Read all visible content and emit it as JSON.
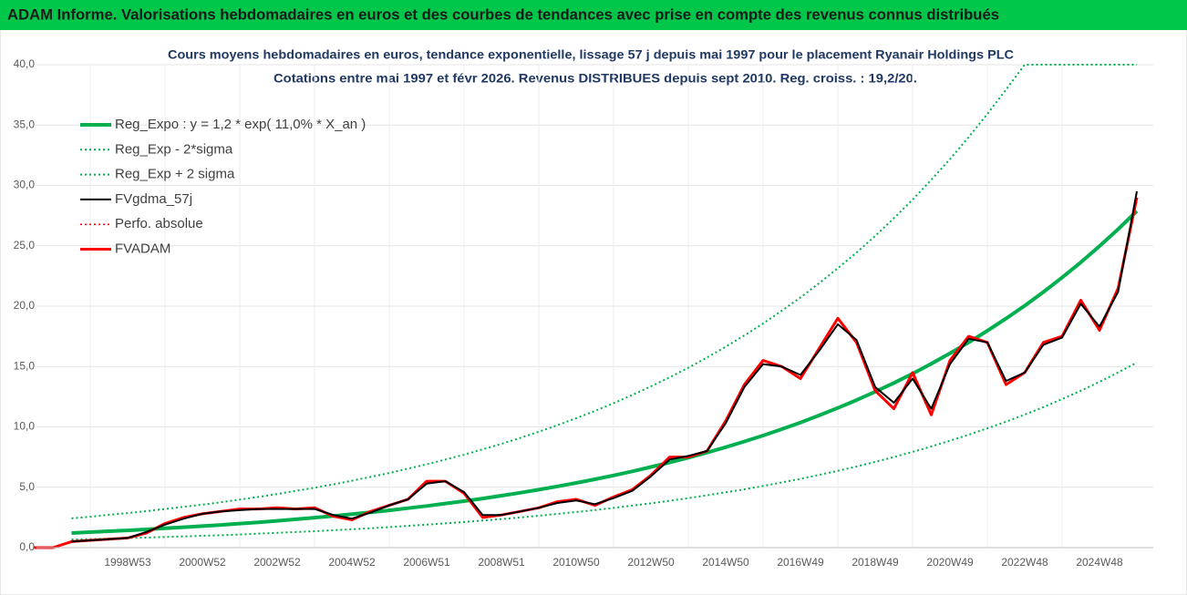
{
  "header": {
    "title": "ADAM Informe. Valorisations hebdomadaires en euros et des courbes de tendances avec prise en compte des revenus connus distribués"
  },
  "chart_data": {
    "type": "line",
    "title": "Cours moyens hebdomadaires en euros, tendance exponentielle, lissage 57 j depuis mai 1997 pour le placement Ryanair Holdings PLC",
    "subtitle": "Cotations entre mai 1997 et févr 2026. Revenus DISTRIBUES depuis sept 2010. Reg. croiss. : 19,2/20.",
    "categories": [
      null,
      null,
      null,
      null,
      null,
      "1998W53",
      null,
      null,
      null,
      "2000W52",
      null,
      null,
      null,
      "2002W52",
      null,
      null,
      null,
      "2004W52",
      null,
      null,
      null,
      "2006W51",
      null,
      null,
      null,
      "2008W51",
      null,
      null,
      null,
      "2010W50",
      null,
      null,
      null,
      "2012W50",
      null,
      null,
      null,
      "2014W50",
      null,
      null,
      null,
      "2016W49",
      null,
      null,
      null,
      "2018W49",
      null,
      null,
      null,
      "2020W49",
      null,
      null,
      null,
      "2022W48",
      null,
      null,
      null,
      "2024W48",
      null,
      null
    ],
    "ylim": [
      0,
      40
    ],
    "yticks": [
      {
        "value": 0,
        "label": "0,0"
      },
      {
        "value": 5,
        "label": "5,0"
      },
      {
        "value": 10,
        "label": "10,0"
      },
      {
        "value": 15,
        "label": "15,0"
      },
      {
        "value": 20,
        "label": "20,0"
      },
      {
        "value": 25,
        "label": "25,0"
      },
      {
        "value": 30,
        "label": "30,0"
      },
      {
        "value": 35,
        "label": "35,0"
      },
      {
        "value": 40,
        "label": "40,0"
      }
    ],
    "grid": true,
    "legend": "upper left",
    "series": [
      {
        "name": "Reg_Expo : y = 1,2 * exp( 11,0% *  X_an )",
        "color": "#00b050",
        "width": 4,
        "dash": "solid",
        "values": [
          null,
          null,
          1.21,
          1.28,
          1.36,
          1.43,
          1.51,
          1.6,
          1.69,
          1.78,
          1.88,
          1.99,
          2.1,
          2.22,
          2.35,
          2.48,
          2.62,
          2.77,
          2.93,
          3.09,
          3.27,
          3.45,
          3.65,
          3.85,
          4.07,
          4.3,
          4.54,
          4.8,
          5.07,
          5.36,
          5.66,
          5.98,
          6.32,
          6.68,
          7.05,
          7.45,
          7.87,
          8.32,
          8.79,
          9.28,
          9.81,
          10.36,
          10.95,
          11.57,
          12.22,
          12.91,
          13.64,
          14.41,
          15.23,
          16.09,
          17.0,
          17.96,
          18.97,
          20.04,
          21.17,
          22.37,
          23.63,
          24.97,
          26.38,
          27.87
        ]
      },
      {
        "name": "Reg_Exp - 2*sigma",
        "color": "#00b050",
        "width": 2,
        "dash": "dotted",
        "values": [
          null,
          null,
          0.67,
          0.7,
          0.75,
          0.79,
          0.83,
          0.88,
          0.93,
          0.98,
          1.03,
          1.09,
          1.16,
          1.22,
          1.29,
          1.36,
          1.44,
          1.52,
          1.61,
          1.7,
          1.8,
          1.9,
          2.01,
          2.12,
          2.24,
          2.37,
          2.5,
          2.64,
          2.79,
          2.95,
          3.11,
          3.29,
          3.48,
          3.67,
          3.88,
          4.1,
          4.33,
          4.58,
          4.83,
          5.1,
          5.4,
          5.7,
          6.02,
          6.36,
          6.72,
          7.1,
          7.5,
          7.93,
          8.38,
          8.85,
          9.35,
          9.88,
          10.43,
          11.02,
          11.64,
          12.3,
          13.0,
          13.73,
          14.51,
          15.33
        ]
      },
      {
        "name": "Reg_Exp + 2 sigma",
        "color": "#00b050",
        "width": 2,
        "dash": "dotted",
        "values": [
          null,
          null,
          2.42,
          2.56,
          2.72,
          2.86,
          3.02,
          3.2,
          3.38,
          3.56,
          3.76,
          3.98,
          4.2,
          4.44,
          4.7,
          4.96,
          5.24,
          5.54,
          5.86,
          6.18,
          6.54,
          6.9,
          7.3,
          7.7,
          8.14,
          8.6,
          9.08,
          9.6,
          10.14,
          10.72,
          11.32,
          11.96,
          12.64,
          13.36,
          14.1,
          14.9,
          15.74,
          16.64,
          17.58,
          18.56,
          19.62,
          20.72,
          21.9,
          23.14,
          24.44,
          25.82,
          27.28,
          28.82,
          30.46,
          32.18,
          34.0,
          35.92,
          37.94,
          40,
          40,
          40,
          40,
          40,
          40,
          40
        ]
      },
      {
        "name": "FVgdma_57j",
        "color": "#000000",
        "width": 2,
        "dash": "solid",
        "values": [
          null,
          null,
          0.5,
          0.6,
          0.7,
          0.8,
          1.3,
          1.9,
          2.4,
          2.8,
          3.0,
          3.1,
          3.2,
          3.2,
          3.2,
          3.2,
          2.7,
          2.4,
          2.9,
          3.5,
          4.0,
          5.3,
          5.5,
          4.6,
          2.7,
          2.7,
          3.0,
          3.3,
          3.7,
          3.9,
          3.6,
          4.1,
          4.7,
          5.9,
          7.3,
          7.6,
          8.0,
          10.3,
          13.3,
          15.2,
          15.0,
          14.3,
          16.3,
          18.5,
          17.2,
          13.3,
          12.0,
          14.0,
          11.5,
          15.2,
          17.3,
          17.0,
          13.8,
          14.5,
          16.8,
          17.4,
          20.2,
          18.3,
          21.2,
          29.5
        ]
      },
      {
        "name": "Perfo. absolue",
        "color": "#ff0000",
        "width": 1.5,
        "dash": "dotted",
        "values": [
          0,
          0,
          0.5,
          0.6,
          0.7,
          0.8,
          1.2,
          2.0,
          2.5,
          2.8,
          3.0,
          3.2,
          3.2,
          3.3,
          3.2,
          3.3,
          2.6,
          2.3,
          3.0,
          3.5,
          4.0,
          5.5,
          5.5,
          4.5,
          2.5,
          2.7,
          3.0,
          3.3,
          3.8,
          4.0,
          3.5,
          4.2,
          4.8,
          6.0,
          7.5,
          7.5,
          8.0,
          10.5,
          13.5,
          15.5,
          15.0,
          14.0,
          16.5,
          19.0,
          17.0,
          13.0,
          11.5,
          14.5,
          11.0,
          15.5,
          17.5,
          17.0,
          13.5,
          14.5,
          17.0,
          17.5,
          20.5,
          18.0,
          21.5,
          29.0
        ]
      },
      {
        "name": "FVADAM",
        "color": "#ff0000",
        "width": 3,
        "dash": "solid",
        "values": [
          0,
          0,
          0.5,
          0.6,
          0.7,
          0.8,
          1.2,
          2.0,
          2.5,
          2.8,
          3.0,
          3.2,
          3.2,
          3.3,
          3.2,
          3.3,
          2.6,
          2.3,
          3.0,
          3.5,
          4.0,
          5.5,
          5.5,
          4.5,
          2.5,
          2.7,
          3.0,
          3.3,
          3.8,
          4.0,
          3.5,
          4.2,
          4.8,
          6.0,
          7.5,
          7.5,
          8.0,
          10.5,
          13.5,
          15.5,
          15.0,
          14.0,
          16.5,
          19.0,
          17.0,
          13.0,
          11.5,
          14.5,
          11.0,
          15.5,
          17.5,
          17.0,
          13.5,
          14.5,
          17.0,
          17.5,
          20.5,
          18.0,
          21.5,
          29.0
        ]
      }
    ]
  }
}
